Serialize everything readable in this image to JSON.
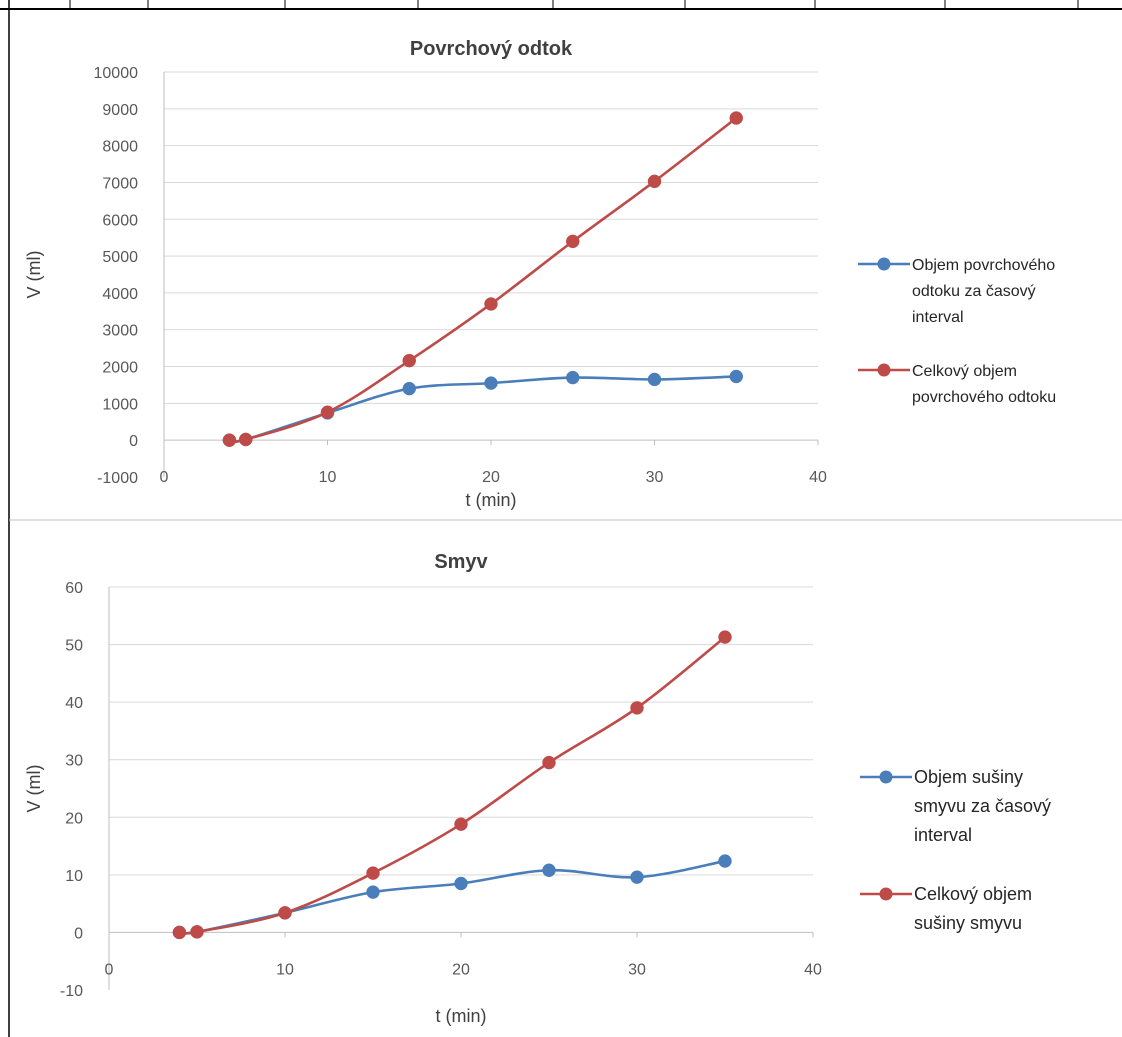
{
  "colors": {
    "series1": "#4a7ebb",
    "series2": "#be4b48",
    "grid": "#d9d9d9",
    "axis": "#bfbfbf",
    "frame": "#000000",
    "cellBorder": "#bfbfbf"
  },
  "chart_data": [
    {
      "type": "line",
      "title": "Povrchový odtok",
      "xlabel": "t (min)",
      "ylabel": "V (ml)",
      "xlim": [
        0,
        40
      ],
      "ylim": [
        -1000,
        10000
      ],
      "xticks": [
        0,
        10,
        20,
        30,
        40
      ],
      "yticks": [
        -1000,
        0,
        1000,
        2000,
        3000,
        4000,
        5000,
        6000,
        7000,
        8000,
        9000,
        10000
      ],
      "grid": true,
      "legend": "right",
      "series": [
        {
          "name": "Objem povrchového odtoku za časový interval",
          "legend_lines": [
            "Objem povrchového",
            "odtoku za časový",
            "interval"
          ],
          "x": [
            4,
            5,
            10,
            15,
            20,
            25,
            30,
            35
          ],
          "y": [
            0,
            20,
            740,
            1400,
            1550,
            1700,
            1650,
            1730
          ]
        },
        {
          "name": " Celkový objem povrchového odtoku",
          "legend_lines": [
            " Celkový objem",
            "povrchového odtoku"
          ],
          "x": [
            4,
            5,
            10,
            15,
            20,
            25,
            30,
            35
          ],
          "y": [
            0,
            20,
            760,
            2160,
            3700,
            5400,
            7030,
            8750
          ]
        }
      ]
    },
    {
      "type": "line",
      "title": "Smyv",
      "xlabel": "t (min)",
      "ylabel": "V (ml)",
      "xlim": [
        0,
        40
      ],
      "ylim": [
        -10,
        60
      ],
      "xticks": [
        0,
        10,
        20,
        30,
        40
      ],
      "yticks": [
        -10,
        0,
        10,
        20,
        30,
        40,
        50,
        60
      ],
      "grid": true,
      "legend": "right",
      "series": [
        {
          "name": "Objem sušiny smyvu za časový interval",
          "legend_lines": [
            "Objem sušiny",
            "smyvu za časový",
            "interval"
          ],
          "x": [
            4,
            5,
            10,
            15,
            20,
            25,
            30,
            35
          ],
          "y": [
            0,
            0.1,
            3.4,
            7.0,
            8.5,
            10.8,
            9.6,
            12.4
          ]
        },
        {
          "name": "Celkový objem sušiny smyvu",
          "legend_lines": [
            "Celkový objem",
            "sušiny smyvu"
          ],
          "x": [
            4,
            5,
            10,
            15,
            20,
            25,
            30,
            35
          ],
          "y": [
            0,
            0.1,
            3.4,
            10.3,
            18.8,
            29.5,
            39.0,
            51.3
          ]
        }
      ]
    }
  ]
}
